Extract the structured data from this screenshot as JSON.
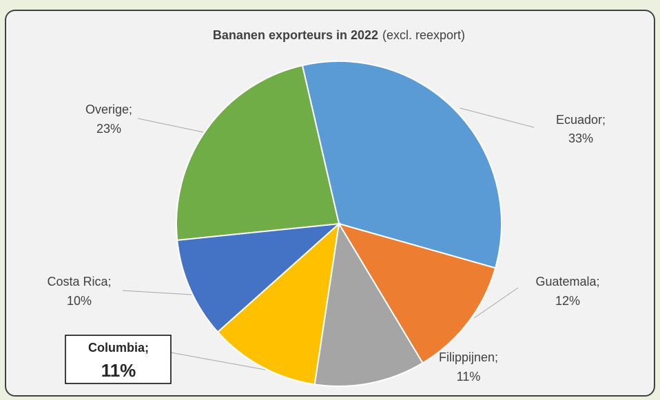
{
  "chart_data": {
    "type": "pie",
    "title": "Bananen exporteurs in 2022",
    "subtitle": "(excl. reexport)",
    "categories": [
      "Ecuador;",
      "Guatemala;",
      "Filippijnen;",
      "Columbia;",
      "Costa Rica;",
      "Overige;"
    ],
    "values": [
      33,
      12,
      11,
      11,
      10,
      23
    ],
    "value_labels": [
      "33%",
      "12%",
      "11%",
      "11%",
      "10%",
      "23%"
    ],
    "colors": [
      "#5b9bd5",
      "#ed7d31",
      "#a5a5a5",
      "#ffc000",
      "#4472c4",
      "#70ad47"
    ]
  }
}
